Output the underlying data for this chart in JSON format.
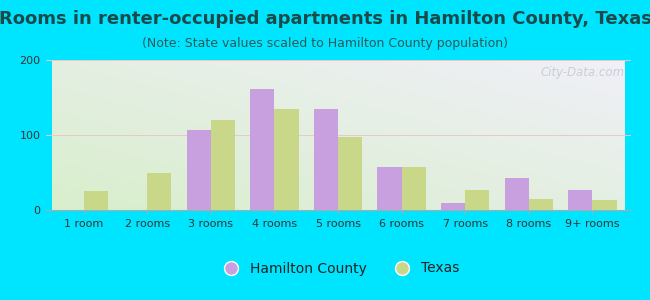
{
  "title": "Rooms in renter-occupied apartments in Hamilton County, Texas",
  "subtitle": "(Note: State values scaled to Hamilton County population)",
  "categories": [
    "1 room",
    "2 rooms",
    "3 rooms",
    "4 rooms",
    "5 rooms",
    "6 rooms",
    "7 rooms",
    "8 rooms",
    "9+ rooms"
  ],
  "hamilton_county": [
    0,
    0,
    107,
    162,
    135,
    58,
    10,
    43,
    27
  ],
  "texas": [
    25,
    50,
    120,
    135,
    97,
    58,
    27,
    15,
    13
  ],
  "hamilton_color": "#c8a0e0",
  "texas_color": "#c8d888",
  "background_outer": "#00e5ff",
  "ylim": [
    0,
    200
  ],
  "yticks": [
    0,
    100,
    200
  ],
  "bar_width": 0.38,
  "title_fontsize": 13,
  "subtitle_fontsize": 9,
  "legend_fontsize": 10,
  "tick_fontsize": 8,
  "title_color": "#1a4a4a",
  "subtitle_color": "#2a5a5a",
  "watermark_text": "City-Data.com",
  "watermark_color": "#b0b8c8",
  "watermark_alpha": 0.6,
  "grad_bottom_left": "#d8eecc",
  "grad_top_right": "#f0f0f8"
}
